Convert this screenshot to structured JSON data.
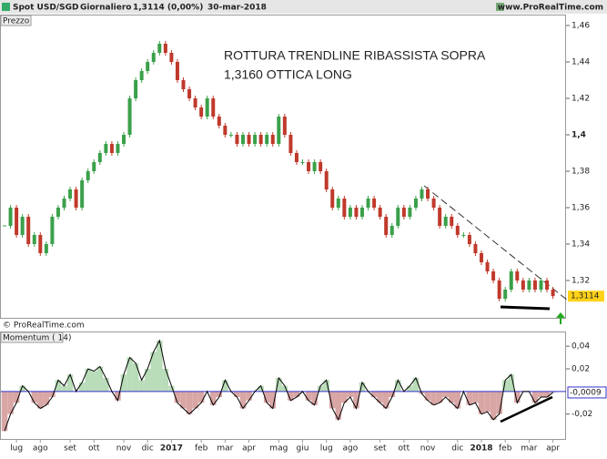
{
  "header": {
    "symbol": "Spot USD/SGD",
    "period": "Giornaliero",
    "price": "1,3114 (0,00%)",
    "date": "30-mar-2018",
    "site": "www.ProRealTime.com"
  },
  "chart_data": [
    {
      "type": "candlestick",
      "panel_label": "Prezzo",
      "copyright": "© ProRealTime.com",
      "annotation": [
        "ROTTURA TRENDLINE RIBASSISTA SOPRA",
        "1,3160 OTTICA LONG"
      ],
      "categories": [
        null,
        null,
        "lug",
        null,
        null,
        null,
        "ago",
        null,
        null,
        null,
        null,
        "set",
        null,
        null,
        null,
        "ott",
        null,
        null,
        null,
        null,
        "nov",
        null,
        null,
        null,
        "dic",
        null,
        null,
        null,
        "2017",
        null,
        null,
        null,
        null,
        "feb",
        null,
        null,
        null,
        "mar",
        null,
        null,
        null,
        "apr",
        null,
        null,
        null,
        null,
        "mag",
        null,
        null,
        null,
        "giu",
        null,
        null,
        null,
        "lug",
        null,
        null,
        null,
        "ago",
        null,
        null,
        null,
        null,
        "set",
        null,
        null,
        null,
        "ott",
        null,
        null,
        null,
        "nov",
        null,
        null,
        null,
        null,
        "dic",
        null,
        null,
        null,
        "2018",
        null,
        null,
        null,
        "feb",
        null,
        null,
        null,
        "mar",
        null,
        null,
        null,
        "apr"
      ],
      "values": [
        1.35,
        1.36,
        1.345,
        1.355,
        1.34,
        1.345,
        1.335,
        1.34,
        1.355,
        1.36,
        1.365,
        1.37,
        1.36,
        1.375,
        1.38,
        1.385,
        1.39,
        1.395,
        1.39,
        1.395,
        1.4,
        1.42,
        1.43,
        1.435,
        1.44,
        1.445,
        1.45,
        1.445,
        1.44,
        1.43,
        1.425,
        1.42,
        1.415,
        1.41,
        1.42,
        1.41,
        1.405,
        1.4,
        1.4,
        1.395,
        1.4,
        1.395,
        1.4,
        1.395,
        1.4,
        1.395,
        1.41,
        1.4,
        1.39,
        1.385,
        1.385,
        1.38,
        1.385,
        1.38,
        1.37,
        1.36,
        1.365,
        1.355,
        1.36,
        1.355,
        1.36,
        1.365,
        1.36,
        1.355,
        1.345,
        1.35,
        1.36,
        1.355,
        1.36,
        1.365,
        1.37,
        1.365,
        1.36,
        1.35,
        1.355,
        1.35,
        1.345,
        1.345,
        1.34,
        1.335,
        1.33,
        1.325,
        1.32,
        1.31,
        1.315,
        1.325,
        1.32,
        1.315,
        1.32,
        1.315,
        1.32,
        1.315,
        1.3114
      ],
      "up_color": "#3aa04a",
      "down_color": "#c0392b",
      "last_price": {
        "value": 1.3114,
        "label": "1,3114"
      },
      "ylim": [
        1.2995,
        1.4655
      ],
      "yticks": [
        {
          "value": 1.32,
          "label": "1,32"
        },
        {
          "value": 1.34,
          "label": "1,34"
        },
        {
          "value": 1.36,
          "label": "1,36"
        },
        {
          "value": 1.38,
          "label": "1,38"
        },
        {
          "value": 1.4,
          "label": "1,4"
        },
        {
          "value": 1.42,
          "label": "1,42"
        },
        {
          "value": 1.44,
          "label": "1,44"
        },
        {
          "value": 1.46,
          "label": "1,46"
        }
      ]
    },
    {
      "type": "momentum",
      "panel_label": "Momentum ( 14)",
      "values": [
        -0.035,
        -0.02,
        -0.01,
        0.005,
        0.0,
        -0.01,
        -0.015,
        -0.012,
        -0.005,
        0.01,
        0.005,
        0.015,
        0.0,
        0.008,
        0.02,
        0.018,
        0.022,
        0.012,
        0.0,
        -0.008,
        0.015,
        0.03,
        0.025,
        0.01,
        0.02,
        0.035,
        0.045,
        0.02,
        0.005,
        -0.01,
        -0.015,
        -0.02,
        -0.015,
        -0.01,
        0.0,
        -0.012,
        -0.005,
        0.01,
        0.0,
        -0.005,
        -0.015,
        -0.008,
        0.0,
        0.005,
        -0.01,
        -0.015,
        0.012,
        0.005,
        -0.008,
        -0.005,
        0.0,
        -0.008,
        -0.012,
        0.005,
        0.01,
        -0.015,
        -0.025,
        -0.01,
        -0.005,
        -0.015,
        0.008,
        0.0,
        -0.005,
        -0.01,
        -0.015,
        -0.005,
        0.01,
        0.0,
        0.005,
        0.012,
        -0.002,
        -0.008,
        -0.012,
        -0.01,
        -0.005,
        -0.01,
        -0.015,
        0.0,
        -0.012,
        -0.01,
        -0.02,
        -0.018,
        -0.025,
        -0.02,
        0.01,
        0.015,
        -0.01,
        0.0,
        0.0,
        -0.01,
        -0.005,
        -0.005,
        -0.0009
      ],
      "up_color": "#b9dcb9",
      "down_color": "#d9a6a6",
      "line_color": "#000000",
      "zero_color": "#3333cc",
      "last_value": {
        "value": -0.0009,
        "label": "-0,0009"
      },
      "ylim": [
        -0.042,
        0.0522
      ],
      "yticks": [
        {
          "value": -0.02,
          "label": "-0,02"
        },
        {
          "value": 0.02,
          "label": "0,02"
        },
        {
          "value": 0.04,
          "label": "0,04"
        }
      ]
    }
  ]
}
